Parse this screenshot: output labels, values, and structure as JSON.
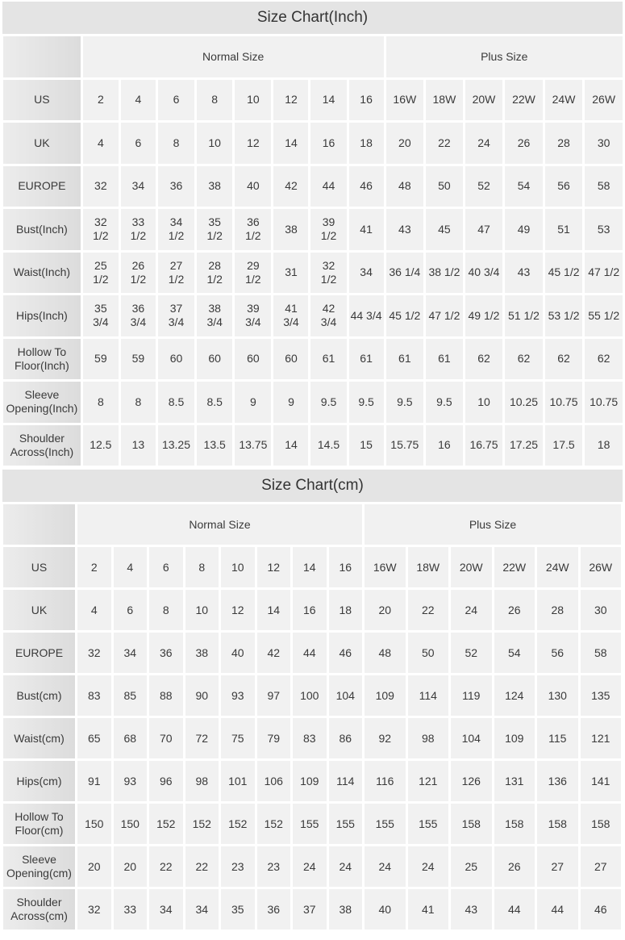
{
  "tables": [
    {
      "title": "Size Chart(Inch)",
      "groups": [
        "Normal Size",
        "Plus Size"
      ],
      "rows": [
        {
          "label": "US",
          "values": [
            "2",
            "4",
            "6",
            "8",
            "10",
            "12",
            "14",
            "16",
            "16W",
            "18W",
            "20W",
            "22W",
            "24W",
            "26W"
          ]
        },
        {
          "label": "UK",
          "values": [
            "4",
            "6",
            "8",
            "10",
            "12",
            "14",
            "16",
            "18",
            "20",
            "22",
            "24",
            "26",
            "28",
            "30"
          ]
        },
        {
          "label": "EUROPE",
          "values": [
            "32",
            "34",
            "36",
            "38",
            "40",
            "42",
            "44",
            "46",
            "48",
            "50",
            "52",
            "54",
            "56",
            "58"
          ]
        },
        {
          "label": "Bust(Inch)",
          "values": [
            "32\n1/2",
            "33\n1/2",
            "34\n1/2",
            "35\n1/2",
            "36\n1/2",
            "38",
            "39\n1/2",
            "41",
            "43",
            "45",
            "47",
            "49",
            "51",
            "53"
          ]
        },
        {
          "label": "Waist(Inch)",
          "values": [
            "25\n1/2",
            "26\n1/2",
            "27\n1/2",
            "28\n1/2",
            "29\n1/2",
            "31",
            "32\n1/2",
            "34",
            "36 1/4",
            "38 1/2",
            "40 3/4",
            "43",
            "45 1/2",
            "47 1/2"
          ]
        },
        {
          "label": "Hips(Inch)",
          "values": [
            "35\n3/4",
            "36\n3/4",
            "37\n3/4",
            "38\n3/4",
            "39\n3/4",
            "41\n3/4",
            "42\n3/4",
            "44 3/4",
            "45 1/2",
            "47 1/2",
            "49 1/2",
            "51 1/2",
            "53 1/2",
            "55 1/2"
          ]
        },
        {
          "label": "Hollow To\nFloor(Inch)",
          "values": [
            "59",
            "59",
            "60",
            "60",
            "60",
            "60",
            "61",
            "61",
            "61",
            "61",
            "62",
            "62",
            "62",
            "62"
          ]
        },
        {
          "label": "Sleeve\nOpening(Inch)",
          "values": [
            "8",
            "8",
            "8.5",
            "8.5",
            "9",
            "9",
            "9.5",
            "9.5",
            "9.5",
            "9.5",
            "10",
            "10.25",
            "10.75",
            "10.75"
          ]
        },
        {
          "label": "Shoulder\nAcross(Inch)",
          "values": [
            "12.5",
            "13",
            "13.25",
            "13.5",
            "13.75",
            "14",
            "14.5",
            "15",
            "15.75",
            "16",
            "16.75",
            "17.25",
            "17.5",
            "18"
          ]
        }
      ]
    },
    {
      "title": "Size Chart(cm)",
      "groups": [
        "Normal Size",
        "Plus Size"
      ],
      "rows": [
        {
          "label": "US",
          "values": [
            "2",
            "4",
            "6",
            "8",
            "10",
            "12",
            "14",
            "16",
            "16W",
            "18W",
            "20W",
            "22W",
            "24W",
            "26W"
          ]
        },
        {
          "label": "UK",
          "values": [
            "4",
            "6",
            "8",
            "10",
            "12",
            "14",
            "16",
            "18",
            "20",
            "22",
            "24",
            "26",
            "28",
            "30"
          ]
        },
        {
          "label": "EUROPE",
          "values": [
            "32",
            "34",
            "36",
            "38",
            "40",
            "42",
            "44",
            "46",
            "48",
            "50",
            "52",
            "54",
            "56",
            "58"
          ]
        },
        {
          "label": "Bust(cm)",
          "values": [
            "83",
            "85",
            "88",
            "90",
            "93",
            "97",
            "100",
            "104",
            "109",
            "114",
            "119",
            "124",
            "130",
            "135"
          ]
        },
        {
          "label": "Waist(cm)",
          "values": [
            "65",
            "68",
            "70",
            "72",
            "75",
            "79",
            "83",
            "86",
            "92",
            "98",
            "104",
            "109",
            "115",
            "121"
          ]
        },
        {
          "label": "Hips(cm)",
          "values": [
            "91",
            "93",
            "96",
            "98",
            "101",
            "106",
            "109",
            "114",
            "116",
            "121",
            "126",
            "131",
            "136",
            "141"
          ]
        },
        {
          "label": "Hollow To\nFloor(cm)",
          "values": [
            "150",
            "150",
            "152",
            "152",
            "152",
            "152",
            "155",
            "155",
            "155",
            "155",
            "158",
            "158",
            "158",
            "158"
          ]
        },
        {
          "label": "Sleeve\nOpening(cm)",
          "values": [
            "20",
            "20",
            "22",
            "22",
            "23",
            "23",
            "24",
            "24",
            "24",
            "24",
            "25",
            "26",
            "27",
            "27"
          ]
        },
        {
          "label": "Shoulder\nAcross(cm)",
          "values": [
            "32",
            "33",
            "34",
            "34",
            "35",
            "36",
            "37",
            "38",
            "40",
            "41",
            "43",
            "44",
            "44",
            "46"
          ]
        }
      ]
    }
  ]
}
